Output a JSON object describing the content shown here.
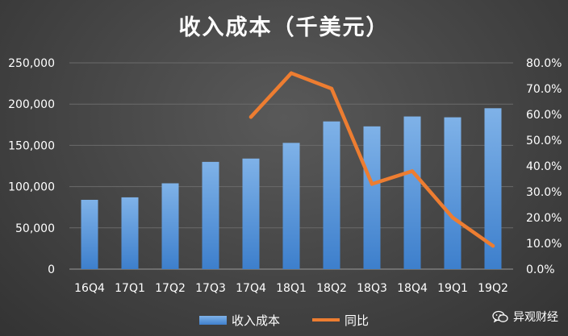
{
  "chart_data": {
    "type": "bar+line",
    "title": "收入成本（千美元）",
    "categories": [
      "16Q4",
      "17Q1",
      "17Q2",
      "17Q3",
      "17Q4",
      "18Q1",
      "18Q2",
      "18Q3",
      "18Q4",
      "19Q1",
      "19Q2"
    ],
    "series": [
      {
        "name": "收入成本",
        "type": "bar",
        "axis": "left",
        "values": [
          84000,
          87000,
          104000,
          130000,
          134000,
          153000,
          179000,
          173000,
          185000,
          184000,
          195000
        ]
      },
      {
        "name": "同比",
        "type": "line",
        "axis": "right",
        "values": [
          null,
          null,
          null,
          null,
          0.59,
          0.76,
          0.7,
          0.33,
          0.38,
          0.2,
          0.09
        ]
      }
    ],
    "left_axis": {
      "ylim": [
        0,
        250000
      ],
      "ticks": [
        "0",
        "50,000",
        "100,000",
        "150,000",
        "200,000",
        "250,000"
      ]
    },
    "right_axis": {
      "ylim": [
        0,
        0.8
      ],
      "ticks": [
        "0.0%",
        "10.0%",
        "20.0%",
        "30.0%",
        "40.0%",
        "50.0%",
        "60.0%",
        "70.0%",
        "80.0%"
      ]
    },
    "grid": true,
    "legend_position": "bottom",
    "colors": {
      "bar": "#5b9bd5",
      "line": "#ed7d31"
    }
  },
  "watermark": {
    "text": "异观财经",
    "icon": "wechat-icon"
  }
}
